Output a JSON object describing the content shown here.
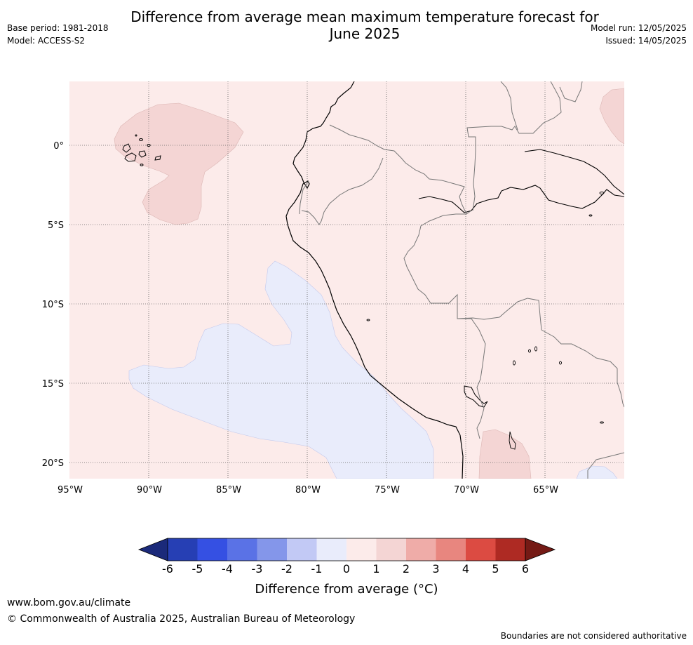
{
  "title": {
    "line1": "Difference from average mean maximum temperature forecast for",
    "line2": "June 2025"
  },
  "meta_left": {
    "base_period": "Base period: 1981-2018",
    "model": "Model: ACCESS-S2"
  },
  "meta_right": {
    "model_run": "Model run: 12/05/2025",
    "issued": "Issued: 14/05/2025"
  },
  "map": {
    "lon_ticks": [
      "95°W",
      "90°W",
      "85°W",
      "80°W",
      "75°W",
      "70°W",
      "65°W"
    ],
    "lat_ticks": [
      "0°",
      "5°S",
      "10°S",
      "15°S",
      "20°S"
    ]
  },
  "colorbar": {
    "tick_labels": [
      "-6",
      "-5",
      "-4",
      "-3",
      "-2",
      "-1",
      "0",
      "1",
      "2",
      "3",
      "4",
      "5",
      "6"
    ],
    "colors": [
      "#1b2a7a",
      "#263fb4",
      "#3550e3",
      "#5a72e6",
      "#8496ea",
      "#c2c9f5",
      "#e9ecfb",
      "#fcebea",
      "#f4d5d4",
      "#efaca8",
      "#e8867f",
      "#dc4b42",
      "#ae2a23",
      "#741a15"
    ],
    "label": "Difference from average (°C)"
  },
  "footer": {
    "url": "www.bom.gov.au/climate",
    "copyright": "© Commonwealth of Australia 2025, Australian Bureau of Meteorology",
    "note": "Boundaries are not considered authoritative"
  }
}
